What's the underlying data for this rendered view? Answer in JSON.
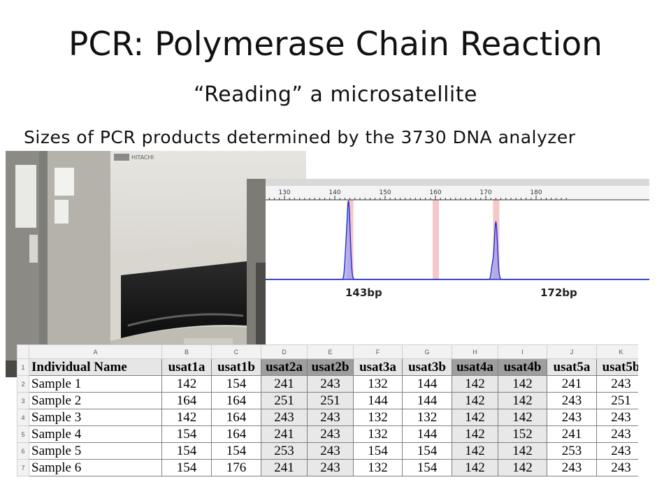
{
  "slide": {
    "title": "PCR: Polymerase Chain Reaction",
    "subtitle": "“Reading” a microsatellite",
    "caption": "Sizes of PCR products determined by the 3730 DNA analyzer"
  },
  "photo": {
    "instrument_brand": "HITACHI"
  },
  "electropherogram": {
    "axis_ticks": [
      "130",
      "140",
      "150",
      "160",
      "170",
      "180"
    ],
    "peaks": [
      {
        "label": "143bp",
        "size": 143
      },
      {
        "label": "172bp",
        "size": 172
      }
    ],
    "bin_colors": {
      "bin": "#f6c6c8",
      "trace": "#1f2fd0",
      "fill": "#9c9cf0"
    }
  },
  "table": {
    "col_letters": [
      "",
      "A",
      "B",
      "C",
      "D",
      "E",
      "F",
      "G",
      "H",
      "I",
      "J",
      "K"
    ],
    "headers": [
      "Individual Name",
      "usat1a",
      "usat1b",
      "usat2a",
      "usat2b",
      "usat3a",
      "usat3b",
      "usat4a",
      "usat4b",
      "usat5a",
      "usat5b"
    ],
    "rows": [
      {
        "num": "2",
        "cells": [
          "Sample 1",
          "142",
          "154",
          "241",
          "243",
          "132",
          "144",
          "142",
          "142",
          "241",
          "243"
        ]
      },
      {
        "num": "3",
        "cells": [
          "Sample 2",
          "164",
          "164",
          "251",
          "251",
          "144",
          "144",
          "142",
          "142",
          "243",
          "251"
        ]
      },
      {
        "num": "4",
        "cells": [
          "Sample 3",
          "142",
          "164",
          "243",
          "243",
          "132",
          "132",
          "142",
          "142",
          "243",
          "243"
        ]
      },
      {
        "num": "5",
        "cells": [
          "Sample 4",
          "154",
          "164",
          "241",
          "243",
          "132",
          "144",
          "142",
          "152",
          "241",
          "243"
        ]
      },
      {
        "num": "6",
        "cells": [
          "Sample 5",
          "154",
          "154",
          "253",
          "243",
          "154",
          "154",
          "142",
          "142",
          "253",
          "243"
        ]
      },
      {
        "num": "7",
        "cells": [
          "Sample 6",
          "154",
          "176",
          "241",
          "243",
          "132",
          "154",
          "142",
          "142",
          "243",
          "243"
        ]
      }
    ],
    "header_row_num": "1"
  }
}
